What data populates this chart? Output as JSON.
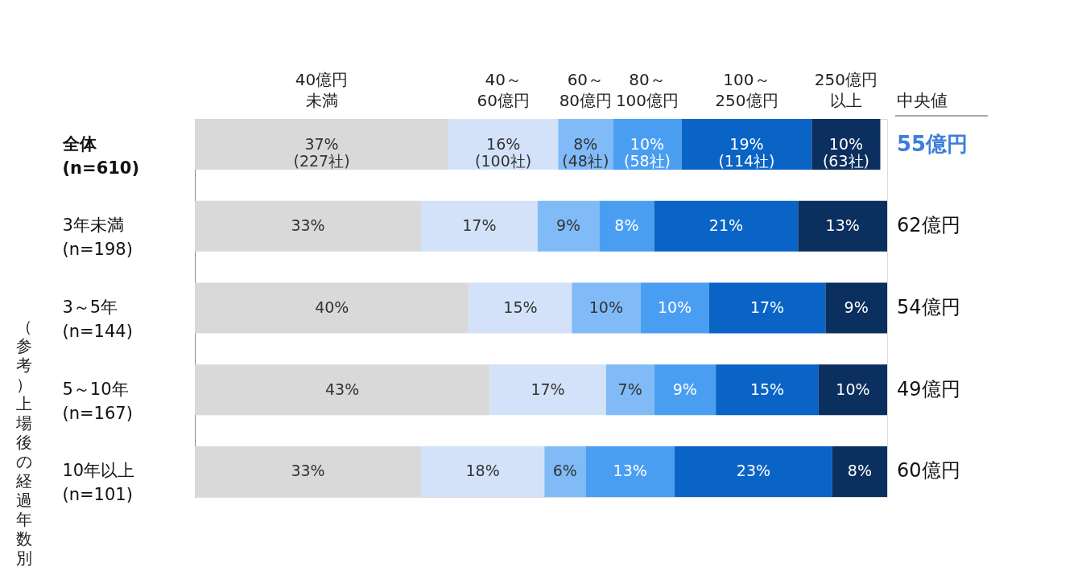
{
  "chart_data": {
    "type": "bar",
    "orientation": "horizontal",
    "stacked": true,
    "legend": "top",
    "categories": [
      "全体\n(n=610)",
      "3年未満\n(n=198)",
      "3～5年\n(n=144)",
      "5～10年\n(n=167)",
      "10年以上\n(n=101)"
    ],
    "series": [
      {
        "name": "40億円未満",
        "color": "#d9d9d9",
        "values": [
          37,
          33,
          40,
          43,
          33
        ],
        "value_labels": [
          "37%\n(227社)",
          "33%",
          "40%",
          "43%",
          "33%"
        ]
      },
      {
        "name": "40～60億円",
        "color": "#d3e2f9",
        "values": [
          16,
          17,
          15,
          17,
          18
        ],
        "value_labels": [
          "16%\n(100社)",
          "17%",
          "15%",
          "17%",
          "18%"
        ]
      },
      {
        "name": "60～80億円",
        "color": "#80bbf7",
        "values": [
          8,
          9,
          10,
          7,
          6
        ],
        "value_labels": [
          "8%\n(48社)",
          "9%",
          "10%",
          "7%",
          "6%"
        ]
      },
      {
        "name": "80～100億円",
        "color": "#4a9ef2",
        "values": [
          10,
          8,
          10,
          9,
          13
        ],
        "value_labels": [
          "10%\n(58社)",
          "8%",
          "10%",
          "9%",
          "13%"
        ]
      },
      {
        "name": "100～250億円",
        "color": "#0a64c6",
        "values": [
          19,
          21,
          17,
          15,
          23
        ],
        "value_labels": [
          "19%\n(114社)",
          "21%",
          "17%",
          "15%",
          "23%"
        ]
      },
      {
        "name": "250億円以上",
        "color": "#0b2f5e",
        "values": [
          10,
          13,
          9,
          10,
          8
        ],
        "value_labels": [
          "10%\n(63社)",
          "13%",
          "9%",
          "10%",
          "8%"
        ]
      }
    ],
    "annotations": [
      "中央値",
      "55億円",
      "62億円",
      "54億円",
      "49億円",
      "60億円",
      "（参考）上場後の経過年数別"
    ]
  }
}
